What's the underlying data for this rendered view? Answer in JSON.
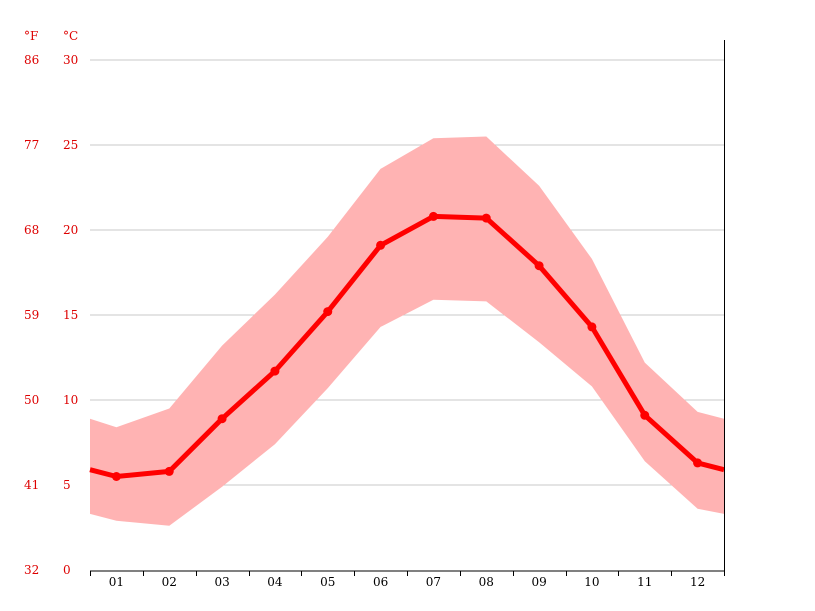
{
  "chart_data": {
    "type": "line",
    "categories": [
      "01",
      "02",
      "03",
      "04",
      "05",
      "06",
      "07",
      "08",
      "09",
      "10",
      "11",
      "12"
    ],
    "series": [
      {
        "values": [
          5.5,
          5.8,
          8.9,
          11.7,
          15.2,
          19.1,
          20.8,
          20.7,
          17.9,
          14.3,
          9.1,
          6.3
        ],
        "line_color": "#ff0000"
      }
    ],
    "range": {
      "min": [
        2.9,
        2.6,
        4.9,
        7.4,
        10.7,
        14.3,
        15.9,
        15.8,
        13.4,
        10.8,
        6.4,
        3.6
      ],
      "max": [
        8.4,
        9.5,
        13.2,
        16.2,
        19.6,
        23.6,
        25.4,
        25.5,
        22.6,
        18.3,
        12.2,
        9.3
      ],
      "fill_color": "#ffb3b3"
    },
    "edge_values": {
      "left": {
        "mean": 5.9,
        "min": 3.3,
        "max": 8.9
      },
      "right": {
        "mean": 5.9,
        "min": 3.3,
        "max": 8.9
      }
    },
    "y_axis_left_unit": "°F",
    "y_axis_right_unit": "°C",
    "y_ticks_f": [
      "86",
      "77",
      "68",
      "59",
      "50",
      "41",
      "32"
    ],
    "y_ticks_c": [
      "30",
      "25",
      "20",
      "15",
      "10",
      "5",
      "0"
    ],
    "ylim_c": [
      0,
      30
    ],
    "grid": true,
    "axis_label_color": "#dd0000",
    "gridline_color": "#c8c8c8"
  }
}
